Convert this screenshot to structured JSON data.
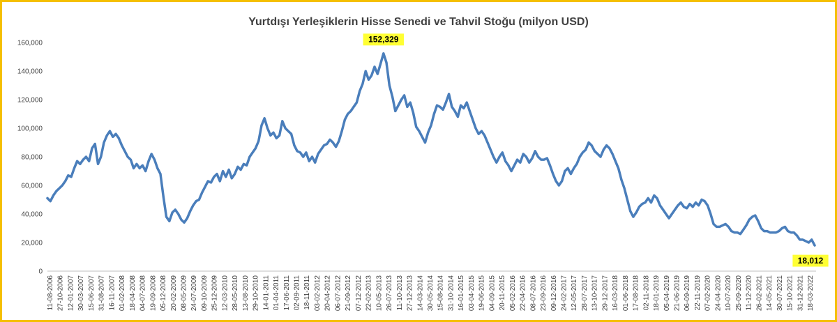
{
  "chart_data": {
    "type": "line",
    "title": "Yurtdışı Yerleşiklerin Hisse Senedi ve Tahvil Stoğu (milyon USD)",
    "xlabel": "",
    "ylabel": "",
    "ylim": [
      0,
      160000
    ],
    "yticks": [
      "0",
      "20,000",
      "40,000",
      "60,000",
      "80,000",
      "100,000",
      "120,000",
      "140,000",
      "160,000"
    ],
    "xticks": [
      "11-08-2006",
      "27-10-2006",
      "12-01-2007",
      "30-03-2007",
      "15-06-2007",
      "31-08-2007",
      "16-11-2007",
      "01-02-2008",
      "18-04-2008",
      "04-07-2008",
      "19-09-2008",
      "05-12-2008",
      "20-02-2009",
      "08-05-2009",
      "24-07-2009",
      "09-10-2009",
      "25-12-2009",
      "12-03-2010",
      "28-05-2010",
      "13-08-2010",
      "29-10-2010",
      "14-01-2011",
      "01-04-2011",
      "17-06-2011",
      "02-09-2011",
      "18-11-2011",
      "03-02-2012",
      "20-04-2012",
      "06-07-2012",
      "21-09-2012",
      "07-12-2012",
      "22-02-2013",
      "10-05-2013",
      "26-07-2013",
      "11-10-2013",
      "27-12-2013",
      "14-03-2014",
      "30-05-2014",
      "15-08-2014",
      "31-10-2014",
      "16-01-2015",
      "03-04-2015",
      "19-06-2015",
      "04-09-2015",
      "20-11-2015",
      "05-02-2016",
      "22-04-2016",
      "08-07-2016",
      "23-09-2016",
      "09-12-2016",
      "24-02-2017",
      "12-05-2017",
      "28-07-2017",
      "13-10-2017",
      "29-12-2017",
      "16-03-2018",
      "01-06-2018",
      "17-08-2018",
      "02-11-2018",
      "18-01-2019",
      "05-04-2019",
      "21-06-2019",
      "06-09-2019",
      "22-11-2019",
      "07-02-2020",
      "24-04-2020",
      "10-07-2020",
      "25-09-2020",
      "11-12-2020",
      "26-02-2021",
      "14-05-2021",
      "30-07-2021",
      "15-10-2021",
      "31-12-2021",
      "18-03-2022"
    ],
    "values": [
      51000,
      49000,
      53000,
      56000,
      58000,
      60000,
      63000,
      67000,
      66000,
      72000,
      77000,
      75000,
      78000,
      80000,
      77000,
      86000,
      89000,
      75000,
      80000,
      90000,
      95000,
      98000,
      94000,
      96000,
      93000,
      88000,
      84000,
      80000,
      78000,
      72000,
      75000,
      72000,
      74000,
      70000,
      77000,
      82000,
      78000,
      72000,
      68000,
      52000,
      38000,
      35000,
      41000,
      43000,
      40000,
      36000,
      34000,
      37000,
      42000,
      46000,
      49000,
      50000,
      55000,
      59000,
      63000,
      62000,
      66000,
      68000,
      63000,
      70000,
      66000,
      71000,
      65000,
      68000,
      73000,
      71000,
      75000,
      74000,
      80000,
      83000,
      86000,
      91000,
      102000,
      107000,
      100000,
      95000,
      97000,
      93000,
      95000,
      105000,
      100000,
      98000,
      96000,
      88000,
      84000,
      83000,
      80000,
      83000,
      77000,
      80000,
      76000,
      82000,
      85000,
      88000,
      89000,
      92000,
      90000,
      87000,
      91000,
      98000,
      106000,
      110000,
      112000,
      115000,
      118000,
      126000,
      131000,
      140000,
      134000,
      137000,
      143000,
      138000,
      145000,
      152329,
      146000,
      130000,
      122000,
      112000,
      116000,
      120000,
      123000,
      115000,
      118000,
      111000,
      101000,
      98000,
      94000,
      90000,
      97000,
      102000,
      110000,
      116000,
      115000,
      113000,
      118000,
      124000,
      115000,
      112000,
      108000,
      116000,
      114000,
      118000,
      112000,
      106000,
      100000,
      96000,
      98000,
      95000,
      90000,
      85000,
      80000,
      76000,
      80000,
      83000,
      77000,
      74000,
      70000,
      74000,
      78000,
      76000,
      82000,
      80000,
      76000,
      79000,
      84000,
      80000,
      78000,
      78000,
      79000,
      74000,
      68000,
      63000,
      60000,
      63000,
      70000,
      72000,
      68000,
      72000,
      75000,
      80000,
      83000,
      85000,
      90000,
      88000,
      84000,
      82000,
      80000,
      85000,
      88000,
      86000,
      82000,
      77000,
      72000,
      64000,
      58000,
      50000,
      42000,
      38000,
      41000,
      45000,
      47000,
      48000,
      51000,
      48000,
      53000,
      51000,
      46000,
      43000,
      40000,
      37000,
      40000,
      43000,
      46000,
      48000,
      45000,
      44000,
      47000,
      45000,
      48000,
      46000,
      50000,
      49000,
      46000,
      40000,
      33000,
      31000,
      31000,
      32000,
      33000,
      31000,
      28000,
      27000,
      27000,
      26000,
      29000,
      32000,
      36000,
      38000,
      39000,
      35000,
      30000,
      28000,
      28000,
      27000,
      27000,
      27000,
      28000,
      30000,
      31000,
      28000,
      27000,
      27000,
      25000,
      22000,
      22000,
      21000,
      20000,
      22000,
      18012
    ],
    "annotations": [
      {
        "label": "152,329",
        "value": 152329
      },
      {
        "label": "18,012",
        "value": 18012
      }
    ],
    "color": "#4a7ebb",
    "grid": false,
    "legend": "none"
  }
}
